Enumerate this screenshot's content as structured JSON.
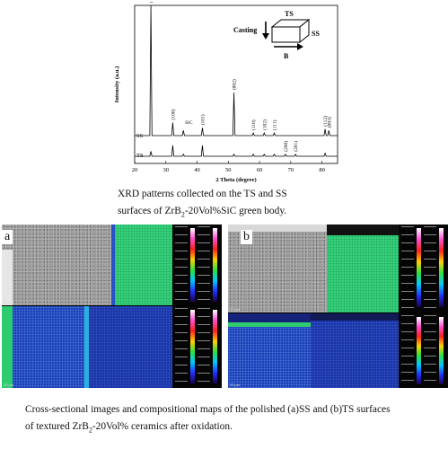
{
  "xrd_figure": {
    "y_axis_label": "Intensity (a.u.)",
    "x_axis_label": "2 Theta (degree)",
    "x_ticks": [
      "20",
      "30",
      "40",
      "50",
      "60",
      "70",
      "80"
    ],
    "series_labels": [
      "SS",
      "TS"
    ],
    "inset": {
      "casting": "Casting",
      "ts": "TS",
      "ss": "SS",
      "b": "B"
    },
    "peak_labels": [
      "(001)",
      "(100)",
      "SiC",
      "(101)",
      "(002)",
      "(110)",
      "(102)",
      "(111)",
      "(200)",
      "(201)",
      "(112)",
      "(003)"
    ]
  },
  "chart_data": {
    "type": "line",
    "xlabel": "2 Theta (degree)",
    "ylabel": "Intensity (a.u.)",
    "xlim": [
      20,
      85
    ],
    "series": [
      {
        "name": "SS",
        "peaks": [
          {
            "x": 25.2,
            "y": 100,
            "label": "(001)"
          },
          {
            "x": 32.2,
            "y": 10,
            "label": "(100)"
          },
          {
            "x": 35.6,
            "y": 4,
            "label": "SiC"
          },
          {
            "x": 41.7,
            "y": 6,
            "label": "(101)"
          },
          {
            "x": 51.8,
            "y": 33,
            "label": "(002)"
          },
          {
            "x": 58.0,
            "y": 2,
            "label": "(110)"
          },
          {
            "x": 61.5,
            "y": 2,
            "label": "(102)"
          },
          {
            "x": 64.7,
            "y": 2,
            "label": "(111)"
          },
          {
            "x": 81.0,
            "y": 5,
            "label": "(112)"
          },
          {
            "x": 82.2,
            "y": 4,
            "label": "(003)"
          }
        ]
      },
      {
        "name": "TS",
        "peaks": [
          {
            "x": 25.2,
            "y": 5
          },
          {
            "x": 32.2,
            "y": 11
          },
          {
            "x": 35.6,
            "y": 2
          },
          {
            "x": 41.7,
            "y": 11
          },
          {
            "x": 51.8,
            "y": 2
          },
          {
            "x": 58.0,
            "y": 2
          },
          {
            "x": 61.5,
            "y": 2
          },
          {
            "x": 64.7,
            "y": 2
          },
          {
            "x": 68.3,
            "y": 2,
            "label": "(200)"
          },
          {
            "x": 71.5,
            "y": 2,
            "label": "(201)"
          },
          {
            "x": 81.0,
            "y": 3
          }
        ]
      }
    ]
  },
  "caption_top": {
    "line1": "XRD patterns collected on the TS and SS",
    "line2_pre": "surfaces of ZrB",
    "line2_sub": "2",
    "line2_post": "-20Vol%SiC green body."
  },
  "panels": {
    "a_label": "a",
    "b_label": "b",
    "scale_text": "20 μm"
  },
  "caption_bottom": {
    "line1": "Cross-sectional images and compositional maps of the polished (a)SS and (b)TS surfaces",
    "line2_pre": "of textured ZrB",
    "line2_sub": "2",
    "line2_post": "-20Vol% ceramics after oxidation."
  },
  "colors": {
    "map_green": "#35d07a",
    "map_blue": "#1f3fb8",
    "map_dark_blue": "#16237a",
    "sem_gray": "#9a9a9a"
  }
}
